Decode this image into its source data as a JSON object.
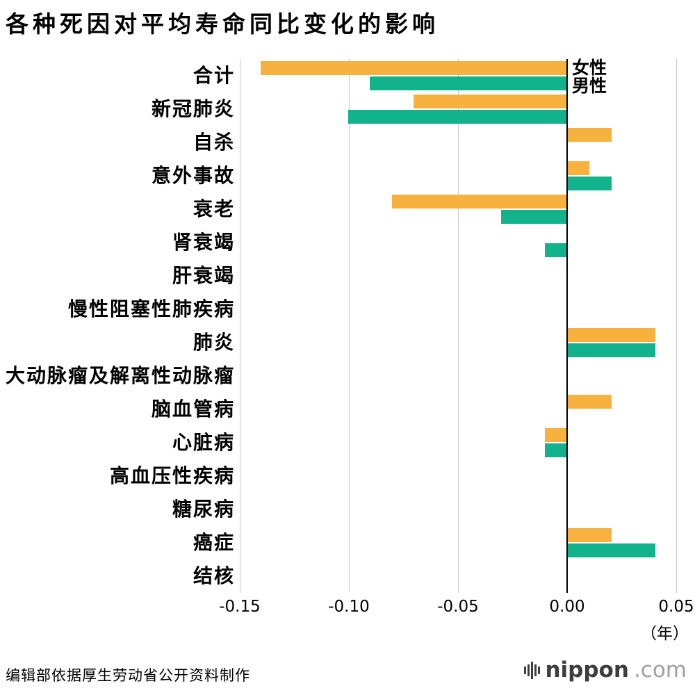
{
  "footer": {
    "source": "编辑部依据厚生劳动省公开资料制作",
    "logo_name": "nippon",
    "logo_domain": ".com"
  },
  "chart_data": {
    "type": "bar",
    "orientation": "horizontal",
    "title": "各种死因对平均寿命同比变化的影响",
    "categories": [
      "合计",
      "新冠肺炎",
      "自杀",
      "意外事故",
      "衰老",
      "肾衰竭",
      "肝衰竭",
      "慢性阻塞性肺疾病",
      "肺炎",
      "大动脉瘤及解离性动脉瘤",
      "脑血管病",
      "心脏病",
      "高血压性疾病",
      "糖尿病",
      "癌症",
      "结核"
    ],
    "series": [
      {
        "name": "女性",
        "color": "#F6B13E",
        "values": [
          -0.14,
          -0.07,
          0.02,
          0.01,
          -0.08,
          0,
          0,
          0,
          0.04,
          0,
          0.02,
          -0.01,
          0,
          0,
          0.02,
          0
        ]
      },
      {
        "name": "男性",
        "color": "#12B28C",
        "values": [
          -0.09,
          -0.1,
          0,
          0.02,
          -0.03,
          -0.01,
          0,
          0,
          0.04,
          0,
          0,
          -0.01,
          0,
          0,
          0.04,
          0
        ]
      }
    ],
    "xlim": [
      -0.15,
      0.05
    ],
    "xticks": [
      -0.15,
      -0.1,
      -0.05,
      0,
      0.05
    ],
    "xtick_labels": [
      "-0.15",
      "-0.10",
      "-0.05",
      "0.00",
      "0.05"
    ],
    "unit_label": "（年）",
    "grid": true,
    "legend_position": "top-right-of-zero-axis",
    "axis_color": "#000000",
    "grid_color": "#c9c9c9"
  }
}
